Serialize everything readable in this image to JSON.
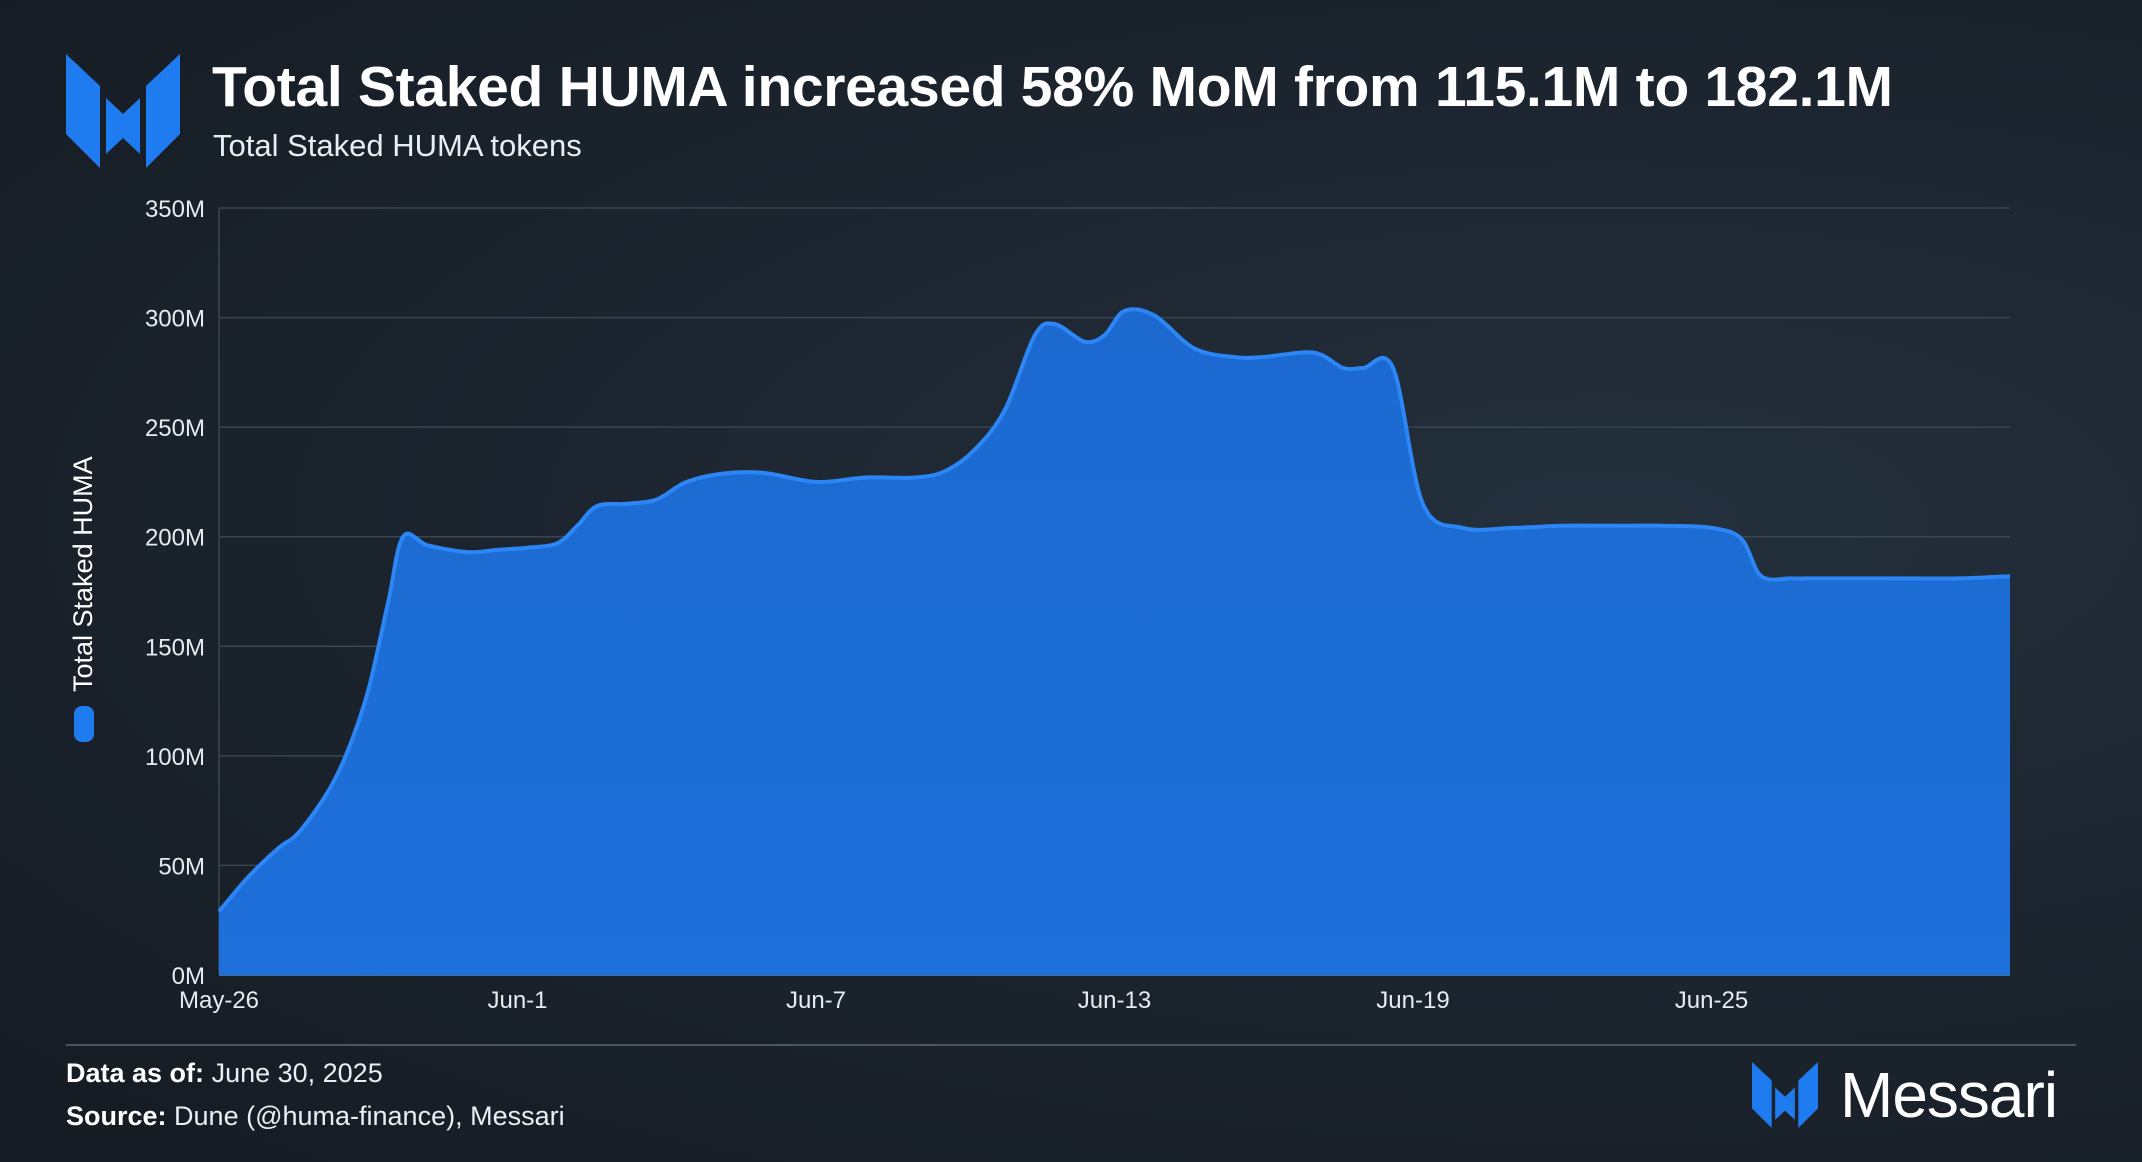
{
  "header": {
    "title": "Total Staked HUMA increased 58% MoM from 115.1M to 182.1M",
    "subtitle": "Total Staked HUMA tokens"
  },
  "footer": {
    "data_as_of_label": "Data as of:",
    "data_as_of_value": "June 30, 2025",
    "source_label": "Source:",
    "source_value": "Dune (@huma-finance), Messari",
    "brand_name": "Messari"
  },
  "colors": {
    "accent": "#1f7bf0",
    "area_fill": "#1c6bd3",
    "line": "#2c86f5",
    "grid": "#3a4452",
    "text": "#ffffff"
  },
  "chart_data": {
    "type": "area",
    "title": "Total Staked HUMA increased 58% MoM from 115.1M to 182.1M",
    "subtitle": "Total Staked HUMA tokens",
    "xlabel": "",
    "ylabel": "Total Staked HUMA",
    "ylim": [
      0,
      350
    ],
    "y_unit": "M",
    "y_ticks": [
      "0M",
      "50M",
      "100M",
      "150M",
      "200M",
      "250M",
      "300M",
      "350M"
    ],
    "y_tick_values": [
      0,
      50,
      100,
      150,
      200,
      250,
      300,
      350
    ],
    "x_tick_labels": [
      "May-26",
      "Jun-1",
      "Jun-7",
      "Jun-13",
      "Jun-19",
      "Jun-25"
    ],
    "x_tick_days": [
      0,
      6,
      12,
      18,
      24,
      30
    ],
    "x_range": [
      0,
      36
    ],
    "grid": true,
    "legend_position": "left-vertical",
    "series": [
      {
        "name": "Total Staked HUMA",
        "x": [
          0,
          0.6,
          1.2,
          1.6,
          2.2,
          2.6,
          3.0,
          3.4,
          3.7,
          4.2,
          5.0,
          5.6,
          6.2,
          6.8,
          7.2,
          7.6,
          8.2,
          8.8,
          9.4,
          10.2,
          11.0,
          12.0,
          13.0,
          14.0,
          14.6,
          15.2,
          15.8,
          16.4,
          16.8,
          17.4,
          17.8,
          18.2,
          18.8,
          19.6,
          20.4,
          21.0,
          22.0,
          22.6,
          23.0,
          23.6,
          24.2,
          25.0,
          26.0,
          27.0,
          28.0,
          29.0,
          30.0,
          30.6,
          31.0,
          31.6,
          32.0,
          33.0,
          34.0,
          35.0,
          36.0
        ],
        "values": [
          29,
          45,
          58,
          65,
          84,
          103,
          130,
          170,
          200,
          196,
          193,
          194,
          195,
          197,
          205,
          214,
          215,
          217,
          225,
          229,
          229,
          225,
          227,
          227,
          230,
          240,
          258,
          292,
          297,
          289,
          292,
          303,
          301,
          286,
          282,
          282,
          284,
          277,
          277,
          277,
          215,
          204,
          204,
          205,
          205,
          205,
          204,
          199,
          182,
          181,
          181,
          181,
          181,
          181,
          182
        ]
      }
    ]
  }
}
